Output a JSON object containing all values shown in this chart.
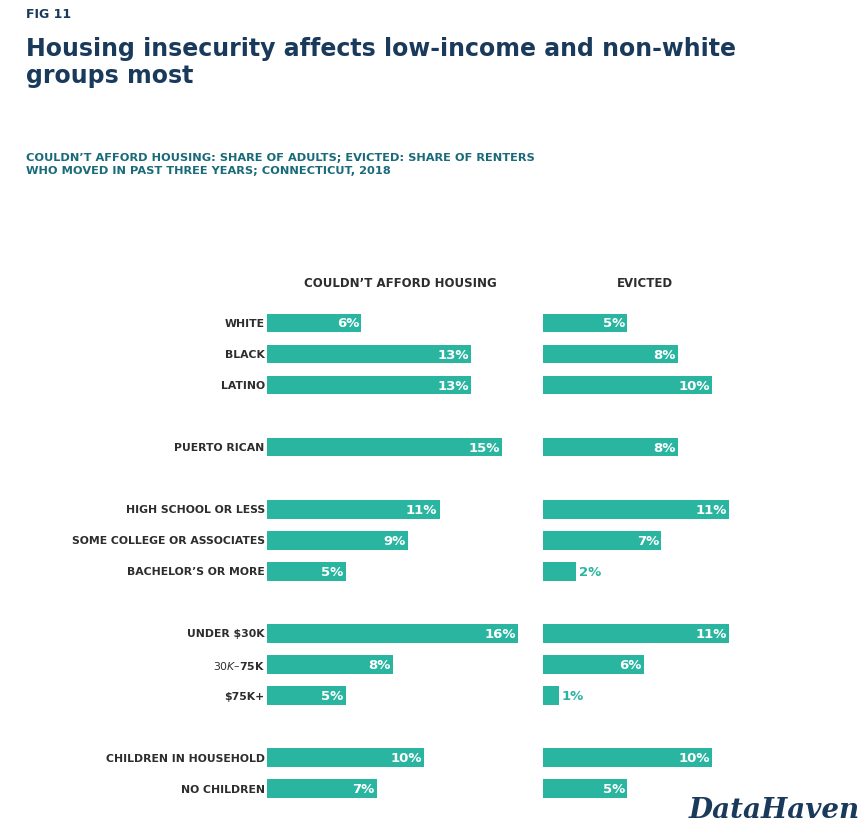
{
  "fig_label": "FIG 11",
  "title": "Housing insecurity affects low-income and non-white\ngroups most",
  "subtitle": "COULDN’T AFFORD HOUSING: SHARE OF ADULTS; EVICTED: SHARE OF RENTERS\nWHO MOVED IN PAST THREE YEARS; CONNECTICUT, 2018",
  "col1_header": "COULDN’T AFFORD HOUSING",
  "col2_header": "EVICTED",
  "bar_color": "#2ab5a0",
  "label_color": "#2d2d2d",
  "title_color": "#1a3a5c",
  "subtitle_color": "#1a6b7a",
  "header_color": "#2d2d2d",
  "bar_text_color": "#ffffff",
  "datahaven_color": "#1a3a5c",
  "background_color": "#ffffff",
  "categories": [
    "WHITE",
    "BLACK",
    "LATINO",
    "",
    "PUERTO RICAN",
    "",
    "HIGH SCHOOL OR LESS",
    "SOME COLLEGE OR ASSOCIATES",
    "BACHELOR’S OR MORE",
    "",
    "UNDER $30K",
    "$30K–$75K",
    "$75K+",
    "",
    "CHILDREN IN HOUSEHOLD",
    "NO CHILDREN"
  ],
  "afford_values": [
    6,
    13,
    13,
    null,
    15,
    null,
    11,
    9,
    5,
    null,
    16,
    8,
    5,
    null,
    10,
    7
  ],
  "evicted_values": [
    5,
    8,
    10,
    null,
    8,
    null,
    11,
    7,
    2,
    null,
    11,
    6,
    1,
    null,
    10,
    5
  ],
  "max_afford": 17,
  "max_evicted": 12,
  "datahaven_text": "DataHaven"
}
